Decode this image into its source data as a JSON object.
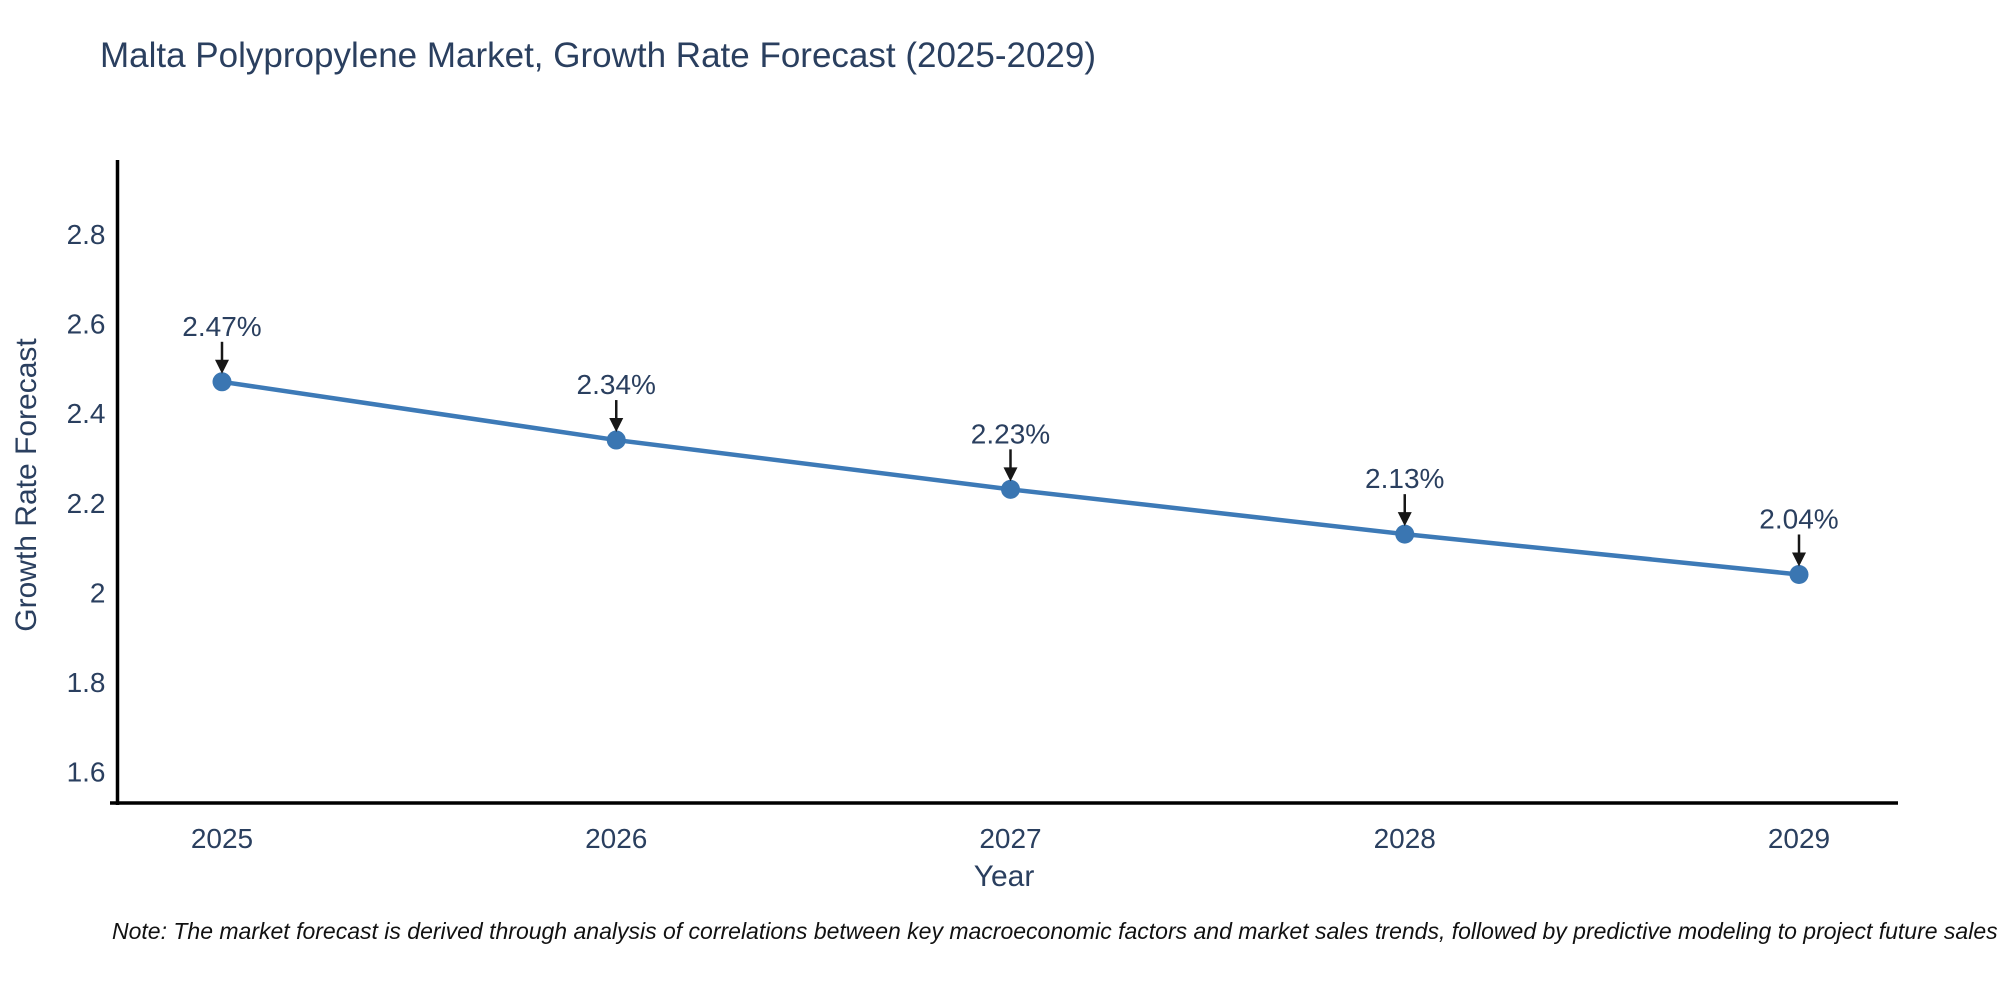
{
  "title": "Malta Polypropylene Market, Growth Rate Forecast (2025-2029)",
  "note": "Note: The market forecast is derived through analysis of correlations between key macroeconomic factors and market sales trends, followed by predictive modeling to project future sales",
  "colors": {
    "line": "#3d7ab7",
    "marker": "#3a76b2",
    "axis": "#000000",
    "text": "#2a3f5f",
    "arrow": "#171717"
  },
  "chart_data": {
    "type": "line",
    "title": "Malta Polypropylene Market, Growth Rate Forecast (2025-2029)",
    "categories": [
      "2025",
      "2026",
      "2027",
      "2028",
      "2029"
    ],
    "series": [
      {
        "name": "Growth Rate Forecast",
        "values": [
          2.47,
          2.34,
          2.23,
          2.13,
          2.04
        ]
      }
    ],
    "point_labels": [
      "2.47%",
      "2.34%",
      "2.23%",
      "2.13%",
      "2.04%"
    ],
    "xlabel": "Year",
    "ylabel": "Growth Rate Forecast",
    "yticks": [
      1.6,
      1.8,
      2,
      2.2,
      2.4,
      2.6,
      2.8
    ],
    "ytick_labels": [
      "1.6",
      "1.8",
      "2",
      "2.2",
      "2.4",
      "2.6",
      "2.8"
    ],
    "ylim": [
      1.53,
      2.965
    ],
    "grid": false,
    "legend": "none"
  }
}
